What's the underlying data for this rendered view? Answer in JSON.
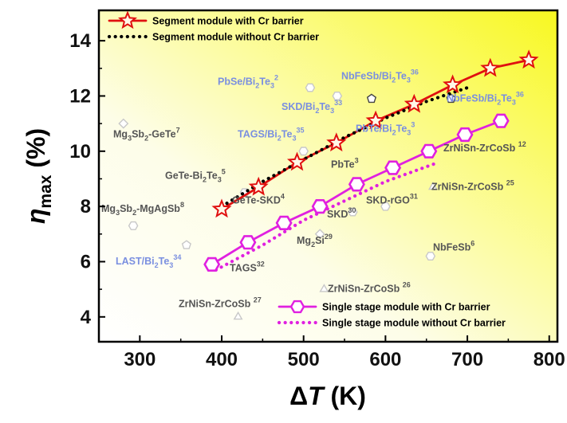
{
  "chart_data": {
    "type": "line",
    "title": "",
    "xlabel": {
      "prefix": "Δ",
      "var": "T",
      "suffix": " (K)"
    },
    "ylabel": {
      "var": "η",
      "sub": "max",
      "suffix": " (%)"
    },
    "xlim": [
      250,
      810
    ],
    "ylim": [
      3.1,
      15.1
    ],
    "x_ticks": [
      "300",
      "400",
      "500",
      "600",
      "700",
      "800"
    ],
    "y_ticks": [
      "4",
      "6",
      "8",
      "10",
      "12",
      "14"
    ],
    "series": [
      {
        "name": "Segment module with Cr barrier",
        "color": "#e01010",
        "marker": "star",
        "line": "solid",
        "x": [
          400,
          445,
          492,
          540,
          588,
          635,
          682,
          728,
          775
        ],
        "y": [
          7.9,
          8.7,
          9.6,
          10.3,
          11.1,
          11.7,
          12.4,
          13.0,
          13.3
        ]
      },
      {
        "name": "Segment module without Cr barrier",
        "color": "#000000",
        "marker": "none",
        "line": "dotted",
        "x": [
          400,
          450,
          500,
          550,
          600,
          650,
          700
        ],
        "y": [
          8.0,
          8.9,
          9.7,
          10.5,
          11.2,
          11.8,
          12.3
        ]
      },
      {
        "name": "Single stage module with Cr barrier",
        "color": "#e020e0",
        "marker": "hexagon",
        "line": "solid",
        "x": [
          388,
          432,
          476,
          520,
          565,
          609,
          653,
          697,
          741
        ],
        "y": [
          5.9,
          6.7,
          7.4,
          8.0,
          8.8,
          9.4,
          10.0,
          10.6,
          11.1
        ]
      },
      {
        "name": "Single stage module without Cr barrier",
        "color": "#e020e0",
        "marker": "none",
        "line": "dotted",
        "x": [
          393,
          450,
          500,
          550,
          600,
          665
        ],
        "y": [
          5.7,
          6.6,
          7.5,
          8.2,
          8.9,
          9.6
        ]
      }
    ],
    "reference_points": [
      {
        "x": 583,
        "y": 11.9,
        "shape": "pentagon",
        "color": "#444444",
        "fill": "#ffffff"
      },
      {
        "x": 680,
        "y": 11.9,
        "shape": "pentagon",
        "color": "#444444",
        "fill": "#ffffff"
      },
      {
        "x": 508,
        "y": 12.3,
        "shape": "hexagon",
        "color": "#c8c8c8",
        "fill": "#ffffff"
      },
      {
        "x": 541,
        "y": 12.0,
        "shape": "hexagon",
        "color": "#c8c8c8",
        "fill": "#ffffff"
      },
      {
        "x": 500,
        "y": 10.0,
        "shape": "hexagon",
        "color": "#c8c8c8",
        "fill": "#ffffff"
      },
      {
        "x": 280,
        "y": 11.0,
        "shape": "diamond",
        "color": "#c8c8c8",
        "fill": "#ffffff"
      },
      {
        "x": 428,
        "y": 8.5,
        "shape": "hexagon",
        "color": "#c8c8c8",
        "fill": "#ffffff"
      },
      {
        "x": 292,
        "y": 7.3,
        "shape": "hexagon",
        "color": "#c8c8c8",
        "fill": "#ffffff"
      },
      {
        "x": 357,
        "y": 6.6,
        "shape": "pentagon",
        "color": "#c8c8c8",
        "fill": "#ffffff"
      },
      {
        "x": 520,
        "y": 7.0,
        "shape": "diamond",
        "color": "#c8c8c8",
        "fill": "#ffffff"
      },
      {
        "x": 560,
        "y": 7.8,
        "shape": "hexagon",
        "color": "#c8c8c8",
        "fill": "#ffffff"
      },
      {
        "x": 600,
        "y": 8.0,
        "shape": "hexagon",
        "color": "#c8c8c8",
        "fill": "#ffffff"
      },
      {
        "x": 655,
        "y": 6.2,
        "shape": "hexagon",
        "color": "#c8c8c8",
        "fill": "#ffffff"
      },
      {
        "x": 658,
        "y": 8.7,
        "shape": "triangle",
        "color": "#c8c8c8",
        "fill": "#ffffff"
      },
      {
        "x": 525,
        "y": 5.0,
        "shape": "triangle",
        "color": "#c8c8c8",
        "fill": "#ffffff"
      },
      {
        "x": 420,
        "y": 4.0,
        "shape": "triangle",
        "color": "#c8c8c8",
        "fill": "#ffffff"
      }
    ],
    "annotations": [
      {
        "id": "pbse",
        "x": 273,
        "y": 12.4,
        "color": "#7a8fe0",
        "text": [
          {
            "t": "PbSe/Bi"
          },
          {
            "t": "2",
            "s": "sub"
          },
          {
            "t": "Te"
          },
          {
            "t": "3",
            "s": "sub"
          },
          {
            "t": "2",
            "s": "sup"
          }
        ]
      },
      {
        "id": "nbfesb-bite-1",
        "x": 428,
        "y": 12.6,
        "color": "#7a8fe0",
        "text": [
          {
            "t": "NbFeSb/Bi"
          },
          {
            "t": "2",
            "s": "sub"
          },
          {
            "t": "Te"
          },
          {
            "t": "3",
            "s": "sub"
          },
          {
            "t": "36",
            "s": "sup"
          }
        ]
      },
      {
        "id": "skd-bite",
        "x": 353,
        "y": 11.5,
        "color": "#7a8fe0",
        "text": [
          {
            "t": "SKD/Bi"
          },
          {
            "t": "2",
            "s": "sub"
          },
          {
            "t": "Te"
          },
          {
            "t": "3",
            "s": "sub"
          },
          {
            "t": "33",
            "s": "sup"
          }
        ]
      },
      {
        "id": "nbfesb-bite-2",
        "x": 560,
        "y": 11.8,
        "color": "#7a8fe0",
        "text": [
          {
            "t": "NbFeSb/Bi"
          },
          {
            "t": "2",
            "s": "sub"
          },
          {
            "t": "Te"
          },
          {
            "t": "3",
            "s": "sub"
          },
          {
            "t": "36",
            "s": "sup"
          }
        ]
      },
      {
        "id": "tags-bite",
        "x": 298,
        "y": 10.5,
        "color": "#7a8fe0",
        "text": [
          {
            "t": "TAGS/Bi"
          },
          {
            "t": "2",
            "s": "sub"
          },
          {
            "t": "Te"
          },
          {
            "t": "3",
            "s": "sub"
          },
          {
            "t": "35",
            "s": "sup"
          }
        ]
      },
      {
        "id": "pbte-bite",
        "x": 446,
        "y": 10.7,
        "color": "#7a8fe0",
        "text": [
          {
            "t": "PbTe/Bi"
          },
          {
            "t": "2",
            "s": "sub"
          },
          {
            "t": "Te"
          },
          {
            "t": "3",
            "s": "sub"
          },
          {
            "t": "3",
            "s": "sup"
          }
        ]
      },
      {
        "id": "mg3sb2-gete",
        "x": 142,
        "y": 10.5,
        "color": "#555555",
        "text": [
          {
            "t": "Mg"
          },
          {
            "t": "3",
            "s": "sub"
          },
          {
            "t": "Sb"
          },
          {
            "t": "2",
            "s": "sub"
          },
          {
            "t": "-GeTe"
          },
          {
            "t": "7",
            "s": "sup"
          }
        ]
      },
      {
        "id": "zrnisn-12",
        "x": 556,
        "y": 10.0,
        "color": "#555555",
        "text": [
          {
            "t": "ZrNiSn-ZrCoSb "
          },
          {
            "t": "12",
            "s": "sup"
          }
        ]
      },
      {
        "id": "gete-bite",
        "x": 207,
        "y": 9.0,
        "color": "#555555",
        "text": [
          {
            "t": "GeTe-Bi"
          },
          {
            "t": "2",
            "s": "sub"
          },
          {
            "t": "Te"
          },
          {
            "t": "3",
            "s": "sub"
          },
          {
            "t": "5",
            "s": "sup"
          }
        ]
      },
      {
        "id": "pbte",
        "x": 415,
        "y": 9.4,
        "color": "#555555",
        "text": [
          {
            "t": "PbTe"
          },
          {
            "t": "3",
            "s": "sup"
          }
        ]
      },
      {
        "id": "zrnisn-25",
        "x": 541,
        "y": 8.6,
        "color": "#555555",
        "text": [
          {
            "t": "ZrNiSn-ZrCoSb "
          },
          {
            "t": "25",
            "s": "sup"
          }
        ]
      },
      {
        "id": "gete-skd",
        "x": 291,
        "y": 8.1,
        "color": "#555555",
        "text": [
          {
            "t": "GeTe-SKD"
          },
          {
            "t": "4",
            "s": "sup"
          }
        ]
      },
      {
        "id": "skd-rgo",
        "x": 459,
        "y": 8.1,
        "color": "#555555",
        "text": [
          {
            "t": "SKD-rGO"
          },
          {
            "t": "31",
            "s": "sup"
          }
        ]
      },
      {
        "id": "mg3sb2-mgagsb",
        "x": 127,
        "y": 7.8,
        "color": "#555555",
        "text": [
          {
            "t": "Mg"
          },
          {
            "t": "3",
            "s": "sub"
          },
          {
            "t": "Sb"
          },
          {
            "t": "2",
            "s": "sub"
          },
          {
            "t": "-MgAgSb"
          },
          {
            "t": "8",
            "s": "sup"
          }
        ]
      },
      {
        "id": "skd",
        "x": 410,
        "y": 7.6,
        "color": "#555555",
        "text": [
          {
            "t": "SKD"
          },
          {
            "t": "30",
            "s": "sup"
          }
        ]
      },
      {
        "id": "mg2si",
        "x": 372,
        "y": 6.65,
        "color": "#555555",
        "text": [
          {
            "t": "Mg"
          },
          {
            "t": "2",
            "s": "sub"
          },
          {
            "t": "Si"
          },
          {
            "t": "29",
            "s": "sup"
          }
        ]
      },
      {
        "id": "nbfesb",
        "x": 543,
        "y": 6.4,
        "color": "#555555",
        "text": [
          {
            "t": "NbFeSb"
          },
          {
            "t": "6",
            "s": "sup"
          }
        ]
      },
      {
        "id": "last-bite",
        "x": 145,
        "y": 5.9,
        "color": "#7a8fe0",
        "text": [
          {
            "t": "LAST/Bi"
          },
          {
            "t": "2",
            "s": "sub"
          },
          {
            "t": "Te"
          },
          {
            "t": "3",
            "s": "sub"
          },
          {
            "t": "34",
            "s": "sup"
          }
        ]
      },
      {
        "id": "tags",
        "x": 288,
        "y": 5.65,
        "color": "#555555",
        "text": [
          {
            "t": "TAGS"
          },
          {
            "t": "32",
            "s": "sup"
          }
        ]
      },
      {
        "id": "zrnisn-26",
        "x": 411,
        "y": 4.9,
        "color": "#555555",
        "text": [
          {
            "t": "ZrNiSn-ZrCoSb "
          },
          {
            "t": "26",
            "s": "sup"
          }
        ]
      },
      {
        "id": "zrnisn-27",
        "x": 224,
        "y": 4.35,
        "color": "#555555",
        "text": [
          {
            "t": "ZrNiSn-ZrCoSb "
          },
          {
            "t": "27",
            "s": "sup"
          }
        ]
      }
    ],
    "legends": [
      {
        "position": "top-left",
        "entries": [
          0,
          1
        ]
      },
      {
        "position": "bottom-right",
        "entries": [
          2,
          3
        ]
      }
    ],
    "grid": false
  }
}
